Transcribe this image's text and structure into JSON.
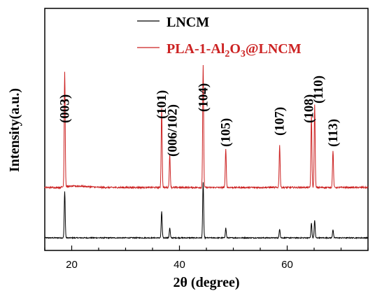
{
  "chart_data": {
    "type": "line",
    "title": "",
    "xlabel": "2θ (degree)",
    "ylabel": "Intensity(a.u.)",
    "xlim": [
      15,
      75
    ],
    "xticks": [
      20,
      40,
      60
    ],
    "xtick_labels": [
      "20",
      "40",
      "60"
    ],
    "y_ticks_shown": false,
    "grid": false,
    "legend_position": "top-right",
    "series": [
      {
        "name": "LNCM",
        "color": "#000000",
        "offset": 0,
        "peaks": [
          {
            "x": 18.7,
            "h": 67
          },
          {
            "x": 36.7,
            "h": 38
          },
          {
            "x": 38.2,
            "h": 14
          },
          {
            "x": 44.4,
            "h": 80
          },
          {
            "x": 48.6,
            "h": 14
          },
          {
            "x": 58.6,
            "h": 13
          },
          {
            "x": 64.5,
            "h": 21
          },
          {
            "x": 65.1,
            "h": 25
          },
          {
            "x": 68.5,
            "h": 12
          }
        ]
      },
      {
        "name": "PLA-1-Al₂O₃@LNCM",
        "color": "#cc2222",
        "offset": 72,
        "peaks": [
          {
            "x": 18.7,
            "h": 165
          },
          {
            "x": 36.7,
            "h": 114
          },
          {
            "x": 38.2,
            "h": 46
          },
          {
            "x": 44.4,
            "h": 174
          },
          {
            "x": 48.6,
            "h": 56
          },
          {
            "x": 58.6,
            "h": 60
          },
          {
            "x": 64.5,
            "h": 102
          },
          {
            "x": 65.1,
            "h": 118
          },
          {
            "x": 68.5,
            "h": 53
          }
        ]
      }
    ],
    "annotations": [
      {
        "text": "(003)",
        "x": 18.7
      },
      {
        "text": "(101)",
        "x": 36.7
      },
      {
        "text": "(006/102)",
        "x": 38.7
      },
      {
        "text": "(104)",
        "x": 44.4
      },
      {
        "text": "(105)",
        "x": 48.6
      },
      {
        "text": "(107)",
        "x": 58.6
      },
      {
        "text": "(108)",
        "x": 64.0
      },
      {
        "text": "(110)",
        "x": 65.8
      },
      {
        "text": "(113)",
        "x": 68.5
      }
    ]
  }
}
